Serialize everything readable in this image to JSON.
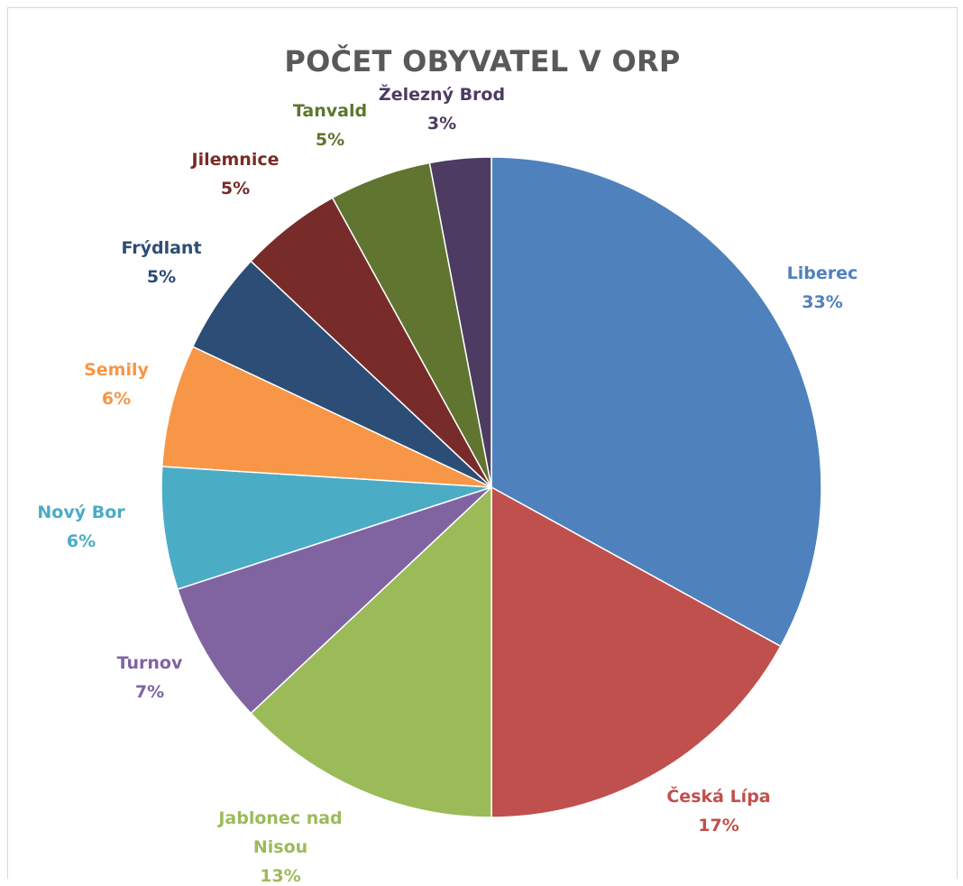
{
  "chart_data": {
    "type": "pie",
    "title": "POČET OBYVATEL V ORP",
    "slices": [
      {
        "label": "Liberec",
        "value": 33,
        "pct": "33%",
        "color": "#4f81bd",
        "label_lines": [
          "Liberec"
        ]
      },
      {
        "label": "Česká Lípa",
        "value": 17,
        "pct": "17%",
        "color": "#c0504d",
        "label_lines": [
          "Česká Lípa"
        ]
      },
      {
        "label": "Jablonec nad Nisou",
        "value": 13,
        "pct": "13%",
        "color": "#9bbb59",
        "label_lines": [
          "Jablonec nad",
          "Nisou"
        ]
      },
      {
        "label": "Turnov",
        "value": 7,
        "pct": "7%",
        "color": "#8064a2",
        "label_lines": [
          "Turnov"
        ]
      },
      {
        "label": "Nový Bor",
        "value": 6,
        "pct": "6%",
        "color": "#4bacc6",
        "label_lines": [
          "Nový Bor"
        ]
      },
      {
        "label": "Semily",
        "value": 6,
        "pct": "6%",
        "color": "#f79646",
        "label_lines": [
          "Semily"
        ]
      },
      {
        "label": "Frýdlant",
        "value": 5,
        "pct": "5%",
        "color": "#2c4d75",
        "label_lines": [
          "Frýdlant"
        ]
      },
      {
        "label": "Jilemnice",
        "value": 5,
        "pct": "5%",
        "color": "#772c2a",
        "label_lines": [
          "Jilemnice"
        ]
      },
      {
        "label": "Tanvald",
        "value": 5,
        "pct": "5%",
        "color": "#5f7530",
        "label_lines": [
          "Tanvald"
        ]
      },
      {
        "label": "Železný Brod",
        "value": 3,
        "pct": "3%",
        "color": "#4d3b62",
        "label_lines": [
          "Železný Brod"
        ]
      }
    ],
    "legend": "none",
    "data_labels": "outside"
  }
}
